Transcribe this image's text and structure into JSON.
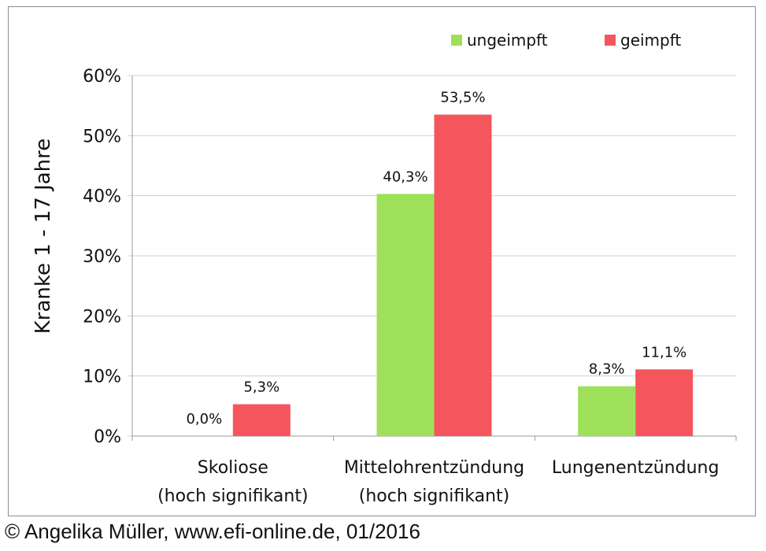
{
  "chart_data": {
    "type": "bar",
    "title": "",
    "xlabel": "",
    "ylabel": "Kranke 1 - 17 Jahre",
    "ylim": [
      0,
      60
    ],
    "yticks": [
      "0%",
      "10%",
      "20%",
      "30%",
      "40%",
      "50%",
      "60%"
    ],
    "grid": true,
    "legend_position": "top-right",
    "categories": [
      [
        "Skoliose",
        "(hoch signifikant)"
      ],
      [
        "Mittelohrentzündung",
        "(hoch signifikant)"
      ],
      [
        "Lungenentzündung"
      ]
    ],
    "series": [
      {
        "name": "ungeimpft",
        "color": "#9ee05a",
        "values": [
          0.0,
          40.3,
          8.3
        ],
        "labels": [
          "0,0%",
          "40,3%",
          "8,3%"
        ]
      },
      {
        "name": "geimpft",
        "color": "#f5555d",
        "values": [
          5.3,
          53.5,
          11.1
        ],
        "labels": [
          "5,3%",
          "53,5%",
          "11,1%"
        ]
      }
    ]
  },
  "footer": {
    "copyright": "© Angelika Müller, www.efi-online.de, 01/2016"
  }
}
